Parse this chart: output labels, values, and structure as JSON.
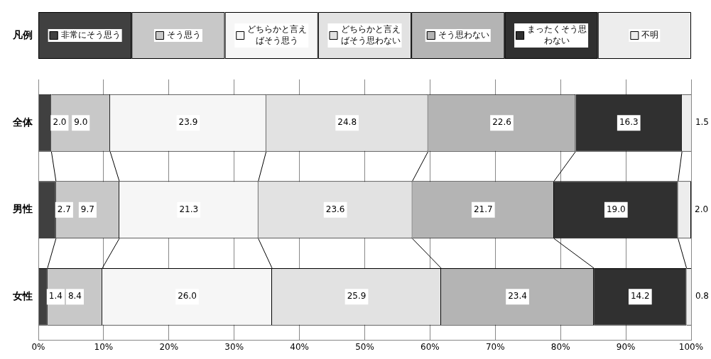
{
  "chart_data": {
    "type": "bar",
    "orientation": "horizontal",
    "stacked": true,
    "legend": "top",
    "legend_title": "凡例",
    "grid": "x",
    "categories": [
      "全体",
      "男性",
      "女性"
    ],
    "xlim": [
      0,
      100
    ],
    "xticks": [
      {
        "value": 0,
        "label": "0%"
      },
      {
        "value": 10,
        "label": "10%"
      },
      {
        "value": 20,
        "label": "20%"
      },
      {
        "value": 30,
        "label": "30%"
      },
      {
        "value": 40,
        "label": "40%"
      },
      {
        "value": 50,
        "label": "50%"
      },
      {
        "value": 60,
        "label": "60%"
      },
      {
        "value": 70,
        "label": "70%"
      },
      {
        "value": 80,
        "label": "80%"
      },
      {
        "value": 90,
        "label": "90%"
      },
      {
        "value": 100,
        "label": "100%"
      }
    ],
    "series": [
      {
        "name": "非常にそう思う",
        "color": "#404040",
        "values": [
          2.0,
          2.7,
          1.4
        ],
        "value_labels": [
          "2.0",
          "2.7",
          "1.4"
        ]
      },
      {
        "name": "そう思う",
        "color": "#c8c8c8",
        "values": [
          9.0,
          9.7,
          8.4
        ],
        "value_labels": [
          "9.0",
          "9.7",
          "8.4"
        ]
      },
      {
        "name": "どちらかと言えばそう思う",
        "color": "#f6f6f6",
        "values": [
          23.9,
          21.3,
          26.0
        ],
        "value_labels": [
          "23.9",
          "21.3",
          "26.0"
        ]
      },
      {
        "name": "どちらかと言えばそう思わない",
        "color": "#e2e2e2",
        "values": [
          24.8,
          23.6,
          25.9
        ],
        "value_labels": [
          "24.8",
          "23.6",
          "25.9"
        ]
      },
      {
        "name": "そう思わない",
        "color": "#b4b4b4",
        "values": [
          22.6,
          21.7,
          23.4
        ],
        "value_labels": [
          "22.6",
          "21.7",
          "23.4"
        ]
      },
      {
        "name": "まったくそう思わない",
        "color": "#303030",
        "values": [
          16.3,
          19.0,
          14.2
        ],
        "value_labels": [
          "16.3",
          "19.0",
          "14.2"
        ]
      },
      {
        "name": "不明",
        "color": "#ededed",
        "values": [
          1.5,
          2.0,
          0.8
        ],
        "value_labels": [
          "1.5",
          "2.0",
          "0.8"
        ]
      }
    ]
  }
}
